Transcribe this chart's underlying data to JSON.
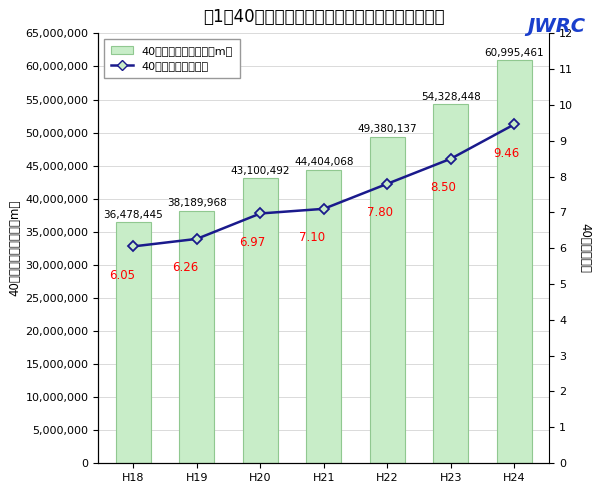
{
  "title": "図1　40年超過管率等の推移（全国、上水＋用供）",
  "jwrc_label": "JWRC",
  "categories": [
    "H18",
    "H19",
    "H20",
    "H21",
    "H22",
    "H23",
    "H24"
  ],
  "bar_values": [
    36478445,
    38189968,
    43100492,
    44404068,
    49380137,
    54328448,
    60995461
  ],
  "bar_labels": [
    "36,478,445",
    "38,189,968",
    "43,100,492",
    "44,404,068",
    "49,380,137",
    "54,328,448",
    "60,995,461"
  ],
  "line_values": [
    6.05,
    6.26,
    6.97,
    7.1,
    7.8,
    8.5,
    9.46
  ],
  "line_labels": [
    "6.05",
    "6.26",
    "6.97",
    "7.10",
    "7.80",
    "8.50",
    "9.46"
  ],
  "bar_color": "#c8edc8",
  "bar_edge_color": "#90c890",
  "line_color": "#1a1a8c",
  "line_marker": "D",
  "marker_face_color": "#c8edc8",
  "marker_edge_color": "#1a1a8c",
  "ylabel_left": "40年超過管延長合計（m）",
  "ylabel_right": "40年超過管率",
  "ylim_left": [
    0,
    65000000
  ],
  "ylim_right": [
    0,
    12
  ],
  "yticks_left": [
    0,
    5000000,
    10000000,
    15000000,
    20000000,
    25000000,
    30000000,
    35000000,
    40000000,
    45000000,
    50000000,
    55000000,
    60000000,
    65000000
  ],
  "yticks_right": [
    0,
    1,
    2,
    3,
    4,
    5,
    6,
    7,
    8,
    9,
    10,
    11,
    12
  ],
  "legend_bar_label": "40年超過管延長合計（m）",
  "legend_line_label": "40年超過管率（％）",
  "background_color": "#ffffff",
  "plot_bg_color": "#ffffff",
  "grid_color": "#cccccc",
  "annotation_color": "#ff0000",
  "bar_label_color": "#000000",
  "title_fontsize": 12,
  "axis_fontsize": 8.5,
  "tick_fontsize": 8,
  "annotation_fontsize": 8.5,
  "bar_label_fontsize": 7.5,
  "legend_fontsize": 8,
  "bar_width": 0.55
}
